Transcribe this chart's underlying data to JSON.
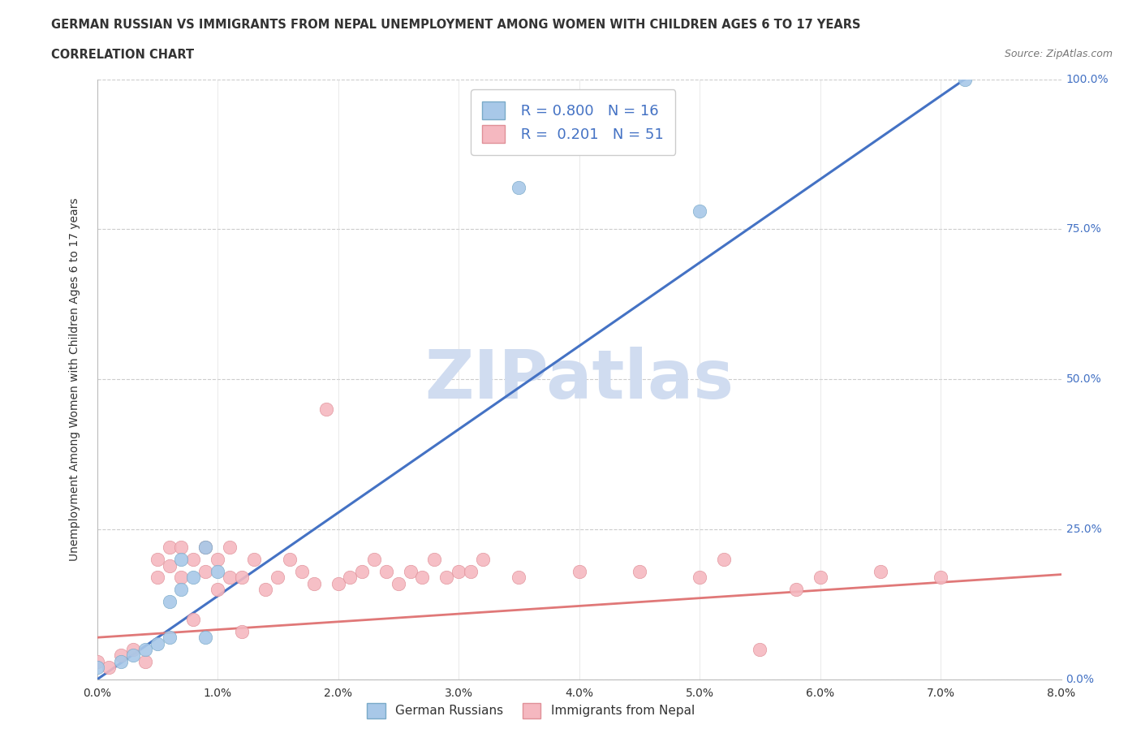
{
  "title_line1": "GERMAN RUSSIAN VS IMMIGRANTS FROM NEPAL UNEMPLOYMENT AMONG WOMEN WITH CHILDREN AGES 6 TO 17 YEARS",
  "title_line2": "CORRELATION CHART",
  "source": "Source: ZipAtlas.com",
  "ylabel": "Unemployment Among Women with Children Ages 6 to 17 years",
  "xlim": [
    0.0,
    0.08
  ],
  "ylim": [
    0.0,
    1.0
  ],
  "xticks": [
    0.0,
    0.01,
    0.02,
    0.03,
    0.04,
    0.05,
    0.06,
    0.07,
    0.08
  ],
  "xtick_labels": [
    "0.0%",
    "1.0%",
    "2.0%",
    "3.0%",
    "4.0%",
    "5.0%",
    "6.0%",
    "7.0%",
    "8.0%"
  ],
  "yticks": [
    0.0,
    0.25,
    0.5,
    0.75,
    1.0
  ],
  "ytick_labels": [
    "0.0%",
    "25.0%",
    "50.0%",
    "75.0%",
    "100.0%"
  ],
  "R_blue": 0.8,
  "N_blue": 16,
  "R_pink": 0.201,
  "N_pink": 51,
  "blue_scatter_color": "#A8C8E8",
  "blue_edge_color": "#7AAAC8",
  "pink_scatter_color": "#F5B8C0",
  "pink_edge_color": "#E09098",
  "blue_line_color": "#4472C4",
  "pink_line_color": "#E07878",
  "blue_scatter_x": [
    0.0,
    0.002,
    0.003,
    0.004,
    0.005,
    0.006,
    0.006,
    0.007,
    0.007,
    0.008,
    0.009,
    0.009,
    0.01,
    0.035,
    0.05,
    0.072
  ],
  "blue_scatter_y": [
    0.02,
    0.03,
    0.04,
    0.05,
    0.06,
    0.07,
    0.13,
    0.15,
    0.2,
    0.17,
    0.07,
    0.22,
    0.18,
    0.82,
    0.78,
    1.0
  ],
  "pink_scatter_x": [
    0.0,
    0.001,
    0.002,
    0.003,
    0.004,
    0.005,
    0.005,
    0.006,
    0.006,
    0.007,
    0.007,
    0.008,
    0.008,
    0.009,
    0.009,
    0.01,
    0.01,
    0.011,
    0.011,
    0.012,
    0.012,
    0.013,
    0.014,
    0.015,
    0.016,
    0.017,
    0.018,
    0.019,
    0.02,
    0.021,
    0.022,
    0.023,
    0.024,
    0.025,
    0.026,
    0.027,
    0.028,
    0.029,
    0.03,
    0.031,
    0.032,
    0.035,
    0.04,
    0.045,
    0.05,
    0.052,
    0.055,
    0.058,
    0.06,
    0.065,
    0.07
  ],
  "pink_scatter_y": [
    0.03,
    0.02,
    0.04,
    0.05,
    0.03,
    0.17,
    0.2,
    0.19,
    0.22,
    0.17,
    0.22,
    0.1,
    0.2,
    0.18,
    0.22,
    0.15,
    0.2,
    0.17,
    0.22,
    0.08,
    0.17,
    0.2,
    0.15,
    0.17,
    0.2,
    0.18,
    0.16,
    0.45,
    0.16,
    0.17,
    0.18,
    0.2,
    0.18,
    0.16,
    0.18,
    0.17,
    0.2,
    0.17,
    0.18,
    0.18,
    0.2,
    0.17,
    0.18,
    0.18,
    0.17,
    0.2,
    0.05,
    0.15,
    0.17,
    0.18,
    0.17
  ],
  "watermark_text": "ZIPatlas",
  "watermark_color": "#D0DCF0",
  "background_color": "#FFFFFF"
}
